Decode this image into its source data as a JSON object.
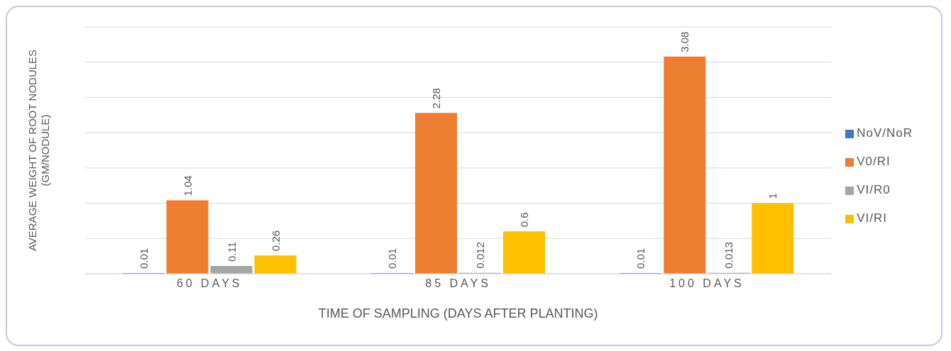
{
  "chart_data": {
    "type": "bar",
    "xlabel": "TIME OF SAMPLING (DAYS AFTER PLANTING)",
    "ylabel": "AVERAGE WEIGHT OF ROOT NODULES\n(GM/NODULE)",
    "categories": [
      "60 DAYS",
      "85 DAYS",
      "100 DAYS"
    ],
    "series": [
      {
        "name": "NoV/NoR",
        "color": "#4472c4",
        "values": [
          0.01,
          0.01,
          0.01
        ]
      },
      {
        "name": "V0/RI",
        "color": "#ed7d31",
        "values": [
          1.04,
          2.28,
          3.08
        ]
      },
      {
        "name": "VI/R0",
        "color": "#a5a5a5",
        "values": [
          0.11,
          0.012,
          0.013
        ]
      },
      {
        "name": "VI/RI",
        "color": "#ffc000",
        "values": [
          0.26,
          0.6,
          1
        ]
      }
    ],
    "ylim": [
      0,
      3.5
    ],
    "yticks": [
      {
        "value": 0,
        "label": null
      },
      {
        "value": 0.5,
        "label": null
      },
      {
        "value": 1,
        "label": null
      },
      {
        "value": 1.5,
        "label": null
      },
      {
        "value": 2,
        "label": null
      },
      {
        "value": 2.5,
        "label": null
      },
      {
        "value": 3,
        "label": null
      },
      {
        "value": 3.5,
        "label": null
      }
    ],
    "tick_labels": "x",
    "grid": "y",
    "legend": "right",
    "data_labels": true
  }
}
